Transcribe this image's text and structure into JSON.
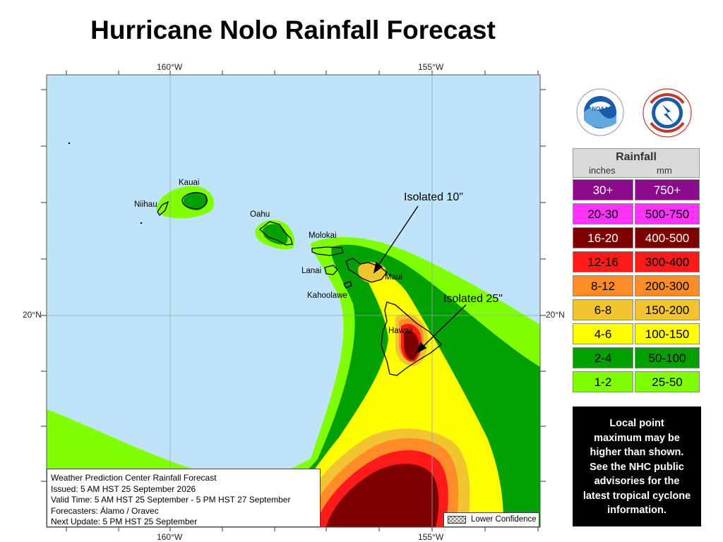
{
  "title": "Hurricane Nolo Rainfall Forecast",
  "coords": {
    "top_160": "160°W",
    "top_155": "155°W",
    "bottom_160": "160°W",
    "bottom_155": "155°W",
    "left_20": "20°N",
    "right_20": "20°N"
  },
  "islands": {
    "kauai": "Kauai",
    "niihau": "Niihau",
    "oahu": "Oahu",
    "molokai": "Molokai",
    "lanai": "Lanai",
    "maui": "Maui",
    "kahoolawe": "Kahoolawe",
    "hawaii": "Hawaii"
  },
  "annotations": {
    "isolated_maui": "Isolated 10\"",
    "isolated_hawaii": "Isolated 25\""
  },
  "logos": {
    "noaa": "noaa-logo",
    "nws": "nws-logo",
    "noaa_text": "NOAA"
  },
  "legend": {
    "title": "Rainfall",
    "unit_in": "inches",
    "unit_mm": "mm",
    "rows": [
      {
        "inches": "30+",
        "mm": "750+",
        "color": "#8c0a8c",
        "text_color": "#ffffff"
      },
      {
        "inches": "20-30",
        "mm": "500-750",
        "color": "#ff33ff",
        "text_color": "#000000"
      },
      {
        "inches": "16-20",
        "mm": "400-500",
        "color": "#7f0000",
        "text_color": "#ffffff"
      },
      {
        "inches": "12-16",
        "mm": "300-400",
        "color": "#ff1a1a",
        "text_color": "#000000"
      },
      {
        "inches": "8-12",
        "mm": "200-300",
        "color": "#ff8c26",
        "text_color": "#000000"
      },
      {
        "inches": "6-8",
        "mm": "150-200",
        "color": "#f2c430",
        "text_color": "#000000"
      },
      {
        "inches": "4-6",
        "mm": "100-150",
        "color": "#ffff00",
        "text_color": "#000000"
      },
      {
        "inches": "2-4",
        "mm": "50-100",
        "color": "#00a000",
        "text_color": "#000000"
      },
      {
        "inches": "1-2",
        "mm": "25-50",
        "color": "#80ff00",
        "text_color": "#000000"
      }
    ]
  },
  "note": {
    "lines": [
      "Local point",
      "maximum may be",
      "higher than shown.",
      "See the NHC public",
      "advisories for the",
      "latest tropical cyclone",
      "information."
    ]
  },
  "infobox": {
    "line1": "Weather Prediction Center Rainfall Forecast",
    "line2": "Issued: 5 AM HST 25 September 2026",
    "line3": "Valid Time: 5 AM HST 25 September - 5 PM HST 27 September",
    "line4": "Forecasters: Álamo / Oravec",
    "line5": "Next Update: 5 PM HST 25 September"
  },
  "lower_confidence": "Lower Confidence",
  "colors": {
    "ocean": "#bfe4fa",
    "c1_2": "#80ff00",
    "c2_4": "#00a000",
    "c4_6": "#ffff00",
    "c6_8": "#f2c430",
    "c8_12": "#ff8c26",
    "c12_16": "#ff1a1a",
    "c16_20": "#7f0000"
  }
}
